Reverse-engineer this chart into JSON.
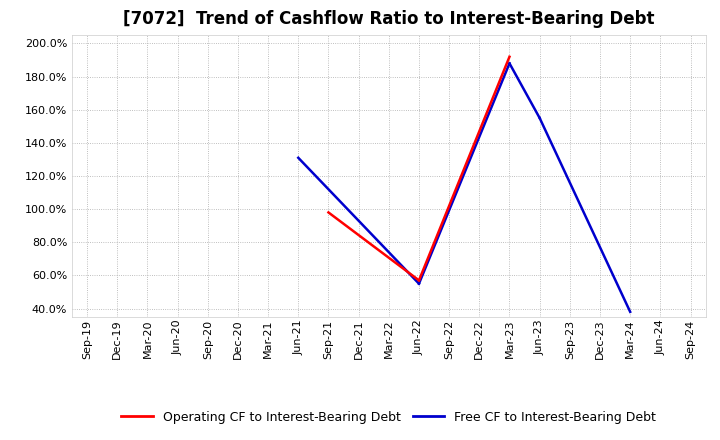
{
  "title": "[7072]  Trend of Cashflow Ratio to Interest-Bearing Debt",
  "x_labels": [
    "Sep-19",
    "Dec-19",
    "Mar-20",
    "Jun-20",
    "Sep-20",
    "Dec-20",
    "Mar-21",
    "Jun-21",
    "Sep-21",
    "Dec-21",
    "Mar-22",
    "Jun-22",
    "Sep-22",
    "Dec-22",
    "Mar-23",
    "Jun-23",
    "Sep-23",
    "Dec-23",
    "Mar-24",
    "Jun-24",
    "Sep-24"
  ],
  "operating_cf_points": {
    "8": 0.98,
    "11": 0.57,
    "14": 1.92
  },
  "free_cf_points": {
    "7": 1.31,
    "11": 0.55,
    "14": 1.88,
    "15": 1.55,
    "18": 0.38
  },
  "ylim": [
    0.35,
    2.05
  ],
  "yticks": [
    0.4,
    0.6,
    0.8,
    1.0,
    1.2,
    1.4,
    1.6,
    1.8,
    2.0
  ],
  "operating_color": "#ff0000",
  "free_color": "#0000cd",
  "grid_color": "#aaaaaa",
  "background_color": "#ffffff",
  "title_fontsize": 12,
  "tick_fontsize": 8,
  "legend_fontsize": 9
}
